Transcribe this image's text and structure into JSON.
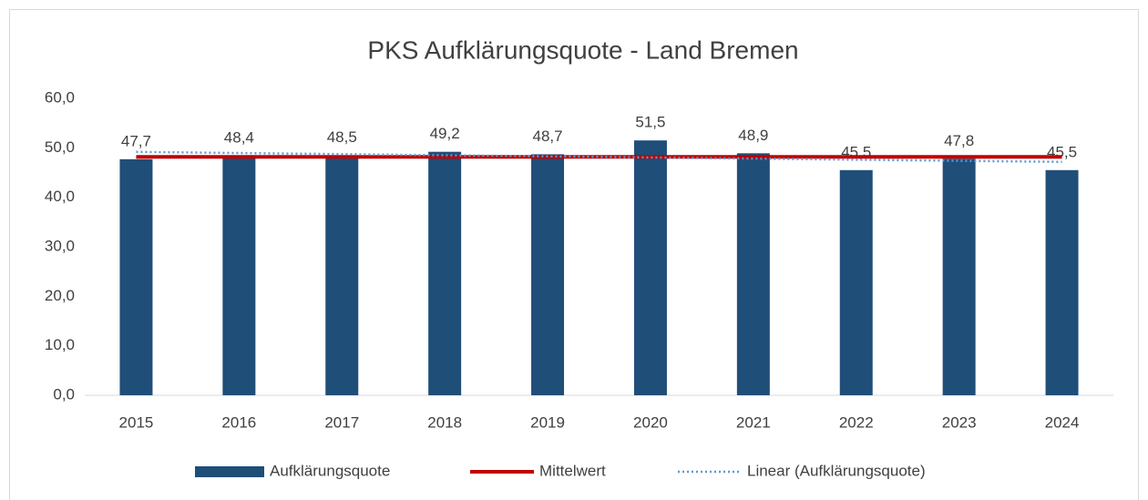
{
  "chart_data": {
    "type": "bar",
    "title": "PKS Aufklärungsquote - Land Bremen",
    "categories": [
      "2015",
      "2016",
      "2017",
      "2018",
      "2019",
      "2020",
      "2021",
      "2022",
      "2023",
      "2024"
    ],
    "series": [
      {
        "name": "Aufklärungsquote",
        "type": "bar",
        "color": "#1f4e79",
        "values": [
          47.7,
          48.4,
          48.5,
          49.2,
          48.7,
          51.5,
          48.9,
          45.5,
          47.8,
          45.5
        ],
        "value_labels": [
          "47,7",
          "48,4",
          "48,5",
          "49,2",
          "48,7",
          "51,5",
          "48,9",
          "45,5",
          "47,8",
          "45,5"
        ]
      },
      {
        "name": "Mittelwert",
        "type": "line",
        "color": "#c00000",
        "values": [
          48.17,
          48.17,
          48.17,
          48.17,
          48.17,
          48.17,
          48.17,
          48.17,
          48.17,
          48.17
        ]
      },
      {
        "name": "Linear (Aufklärungsquote)",
        "type": "line",
        "dash": "dotted",
        "color": "#5b9bd5",
        "values": [
          49.18,
          48.95,
          48.73,
          48.5,
          48.28,
          48.06,
          47.83,
          47.61,
          47.38,
          47.16
        ]
      }
    ],
    "ylim": [
      0,
      60
    ],
    "yticks": [
      {
        "value": 0,
        "label": "0,0"
      },
      {
        "value": 10,
        "label": "10,0"
      },
      {
        "value": 20,
        "label": "20,0"
      },
      {
        "value": 30,
        "label": "30,0"
      },
      {
        "value": 40,
        "label": "40,0"
      },
      {
        "value": 50,
        "label": "50,0"
      },
      {
        "value": 60,
        "label": "60,0"
      }
    ],
    "grid": false,
    "legend": "bottom"
  }
}
